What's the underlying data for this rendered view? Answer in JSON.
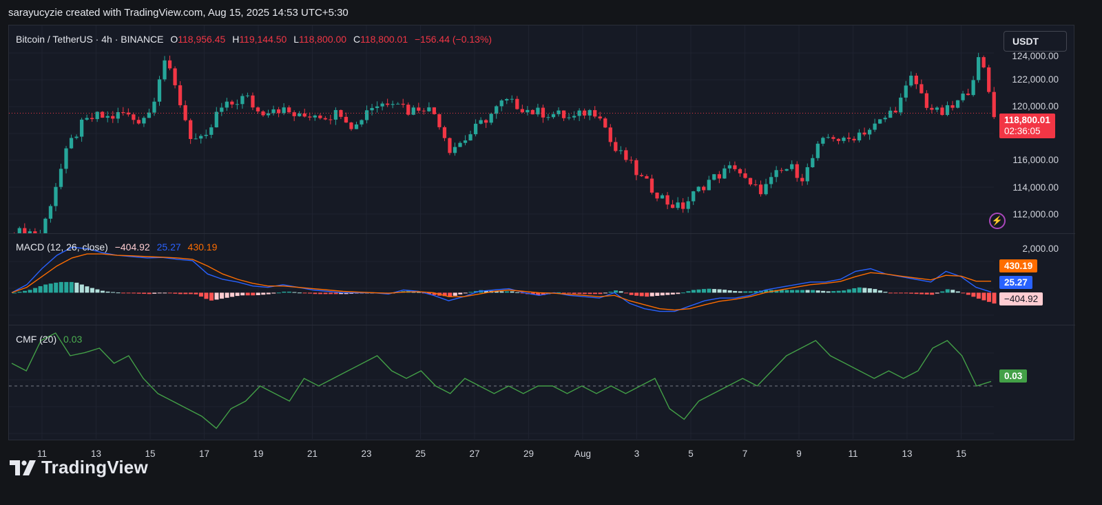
{
  "header": {
    "attribution": "sarayucyzie created with TradingView.com, Aug 15, 2025 14:53 UTC+5:30"
  },
  "symbol": {
    "name": "Bitcoin / TetherUS · 4h · BINANCE",
    "open_label": "O",
    "open": "118,956.45",
    "high_label": "H",
    "high": "119,144.50",
    "low_label": "L",
    "low": "118,800.00",
    "close_label": "C",
    "close": "118,800.01",
    "change": "−156.44 (−0.13%)",
    "currency_button": "USDT"
  },
  "price_axis": {
    "ticks": [
      "124,000.00",
      "122,000.00",
      "120,000.00",
      "116,000.00",
      "114,000.00",
      "112,000.00"
    ],
    "last_price": "118,800.01",
    "countdown": "02:36:05"
  },
  "macd": {
    "label": "MACD (12, 26, close)",
    "hist": "−404.92",
    "macd": "25.27",
    "signal": "430.19",
    "axis_tick": "2,000.00",
    "tag_signal": "430.19",
    "tag_macd": "25.27",
    "tag_hist": "−404.92"
  },
  "cmf": {
    "label": "CMF (20)",
    "value": "0.03",
    "tag": "0.03"
  },
  "x_axis": {
    "labels": [
      "11",
      "13",
      "15",
      "17",
      "19",
      "21",
      "23",
      "25",
      "27",
      "29",
      "Aug",
      "3",
      "5",
      "7",
      "9",
      "11",
      "13",
      "15"
    ]
  },
  "footer": {
    "brand": "TradingView"
  },
  "colors": {
    "up": "#26a69a",
    "down": "#f23645",
    "macd": "#2962ff",
    "signal": "#ff6d00",
    "cmf": "#43a047",
    "background": "#161a25"
  },
  "chart_data": {
    "type": "candlestick",
    "title": "Bitcoin / TetherUS · 4h · BINANCE",
    "timeframe": "4h",
    "x_labels": [
      "11",
      "13",
      "15",
      "17",
      "19",
      "21",
      "23",
      "25",
      "27",
      "29",
      "Aug",
      "3",
      "5",
      "7",
      "9",
      "11",
      "13",
      "15"
    ],
    "price_ylim": [
      111000,
      124500
    ],
    "close_trend": [
      111000,
      111100,
      111000,
      114000,
      116700,
      118100,
      118600,
      118500,
      118800,
      118300,
      118900,
      122400,
      120000,
      117200,
      116900,
      119000,
      119400,
      119900,
      118800,
      119200,
      118900,
      118500,
      118800,
      118600,
      118900,
      117800,
      119200,
      119400,
      119800,
      118900,
      119300,
      118700,
      116500,
      117000,
      117900,
      118700,
      119600,
      119300,
      118900,
      118800,
      118700,
      118400,
      118900,
      118900,
      116500,
      115800,
      114600,
      113800,
      113000,
      112600,
      113600,
      114400,
      114900,
      115400,
      114000,
      113800,
      114800,
      115300,
      114600,
      116500,
      117400,
      116900,
      117500,
      117800,
      118500,
      119400,
      121200,
      119400,
      118700,
      119200,
      120100,
      122500,
      118800
    ],
    "macd_ylim": [
      -1200,
      2200
    ],
    "macd_line": [
      0,
      300,
      900,
      1400,
      1700,
      1650,
      1500,
      1400,
      1350,
      1300,
      1320,
      1250,
      1200,
      700,
      500,
      400,
      250,
      200,
      300,
      200,
      100,
      50,
      0,
      0,
      0,
      -50,
      100,
      50,
      -100,
      -300,
      -150,
      50,
      100,
      150,
      0,
      -100,
      0,
      -100,
      -150,
      -200,
      0,
      -400,
      -600,
      -700,
      -700,
      -500,
      -300,
      -200,
      -200,
      -100,
      100,
      200,
      300,
      400,
      400,
      500,
      800,
      900,
      700,
      600,
      500,
      400,
      800,
      600,
      200,
      25
    ],
    "signal_line": [
      0,
      200,
      600,
      1000,
      1300,
      1450,
      1450,
      1400,
      1380,
      1350,
      1330,
      1300,
      1250,
      1000,
      700,
      500,
      350,
      250,
      250,
      200,
      150,
      100,
      50,
      20,
      0,
      -20,
      20,
      40,
      0,
      -150,
      -150,
      -50,
      50,
      100,
      50,
      0,
      -20,
      -60,
      -100,
      -150,
      -100,
      -300,
      -450,
      -600,
      -650,
      -600,
      -450,
      -320,
      -250,
      -150,
      0,
      100,
      200,
      300,
      350,
      420,
      600,
      750,
      700,
      620,
      550,
      480,
      650,
      620,
      430,
      430
    ],
    "cmf_ylim": [
      -0.35,
      0.4
    ],
    "cmf_line": [
      0.15,
      0.1,
      0.3,
      0.35,
      0.2,
      0.22,
      0.25,
      0.15,
      0.2,
      0.05,
      -0.05,
      -0.1,
      -0.15,
      -0.2,
      -0.28,
      -0.15,
      -0.1,
      0.0,
      -0.05,
      -0.1,
      0.05,
      0.0,
      0.05,
      0.1,
      0.15,
      0.2,
      0.1,
      0.05,
      0.1,
      0.0,
      -0.05,
      0.05,
      0.0,
      -0.05,
      0.0,
      -0.05,
      0.0,
      0.0,
      -0.05,
      0.0,
      -0.05,
      0.0,
      -0.05,
      0.0,
      0.05,
      -0.15,
      -0.22,
      -0.1,
      -0.05,
      0.0,
      0.05,
      0.0,
      0.1,
      0.2,
      0.25,
      0.3,
      0.2,
      0.15,
      0.1,
      0.05,
      0.1,
      0.05,
      0.1,
      0.25,
      0.3,
      0.2,
      0.0,
      0.03
    ]
  }
}
